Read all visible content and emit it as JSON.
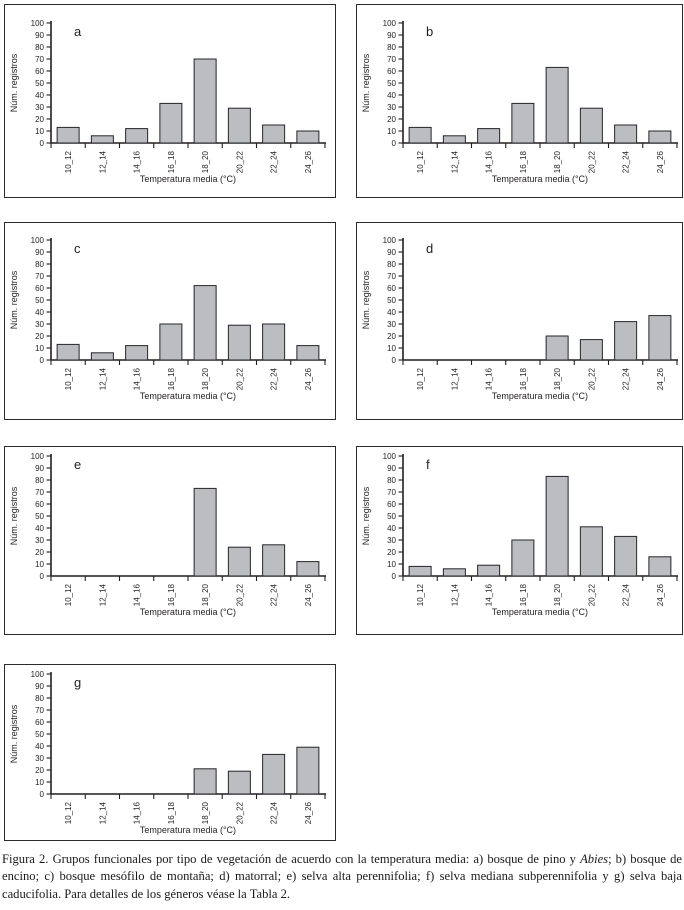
{
  "figure": {
    "caption": {
      "part1": "Figura 2. Grupos funcionales por tipo de vegetación de acuerdo con la temperatura media: a) bosque de pino y ",
      "italic": "Abies",
      "part2": "; b) bosque de encino; c) bosque mesófilo de montaña; d) matorral; e) selva alta perennifolia; f) selva mediana subperennifolia y g) selva baja caducifolia. Para detalles de los géneros véase la Tabla 2."
    },
    "colors": {
      "bar_fill": "#bcbdc1",
      "bar_stroke": "#26262a",
      "axis": "#231f20",
      "panel_border": "#2b2b2b"
    }
  },
  "chart_data": [
    {
      "type": "bar",
      "panel_label": "a",
      "xlabel": "Temperatura media (°C)",
      "ylabel": "Núm. registros",
      "ylim": [
        0,
        100
      ],
      "yticks": [
        0,
        10,
        20,
        30,
        40,
        50,
        60,
        70,
        80,
        90,
        100
      ],
      "categories": [
        "10_12",
        "12_14",
        "14_16",
        "16_18",
        "18_20",
        "20_22",
        "22_24",
        "24_26"
      ],
      "values": [
        13,
        6,
        12,
        33,
        70,
        29,
        15,
        10
      ],
      "grid": false,
      "legend": false
    },
    {
      "type": "bar",
      "panel_label": "b",
      "xlabel": "Temperatura media (°C)",
      "ylabel": "Núm. registros",
      "ylim": [
        0,
        100
      ],
      "yticks": [
        0,
        10,
        20,
        30,
        40,
        50,
        60,
        70,
        80,
        90,
        100
      ],
      "categories": [
        "10_12",
        "12_14",
        "14_16",
        "16_18",
        "18_20",
        "20_22",
        "22_24",
        "24_26"
      ],
      "values": [
        13,
        6,
        12,
        33,
        63,
        29,
        15,
        10
      ],
      "grid": false,
      "legend": false
    },
    {
      "type": "bar",
      "panel_label": "c",
      "xlabel": "Temperatura media (°C)",
      "ylabel": "Núm. registros",
      "ylim": [
        0,
        100
      ],
      "yticks": [
        0,
        10,
        20,
        30,
        40,
        50,
        60,
        70,
        80,
        90,
        100
      ],
      "categories": [
        "10_12",
        "12_14",
        "14_16",
        "16_18",
        "18_20",
        "20_22",
        "22_24",
        "24_26"
      ],
      "values": [
        13,
        6,
        12,
        30,
        62,
        29,
        30,
        12
      ],
      "grid": false,
      "legend": false
    },
    {
      "type": "bar",
      "panel_label": "d",
      "xlabel": "Temperatura media (°C)",
      "ylabel": "Núm. registros",
      "ylim": [
        0,
        100
      ],
      "yticks": [
        0,
        10,
        20,
        30,
        40,
        50,
        60,
        70,
        80,
        90,
        100
      ],
      "categories": [
        "10_12",
        "12_14",
        "14_16",
        "16_18",
        "18_20",
        "20_22",
        "22_24",
        "24_26"
      ],
      "values": [
        0,
        0,
        0,
        0,
        20,
        17,
        32,
        37
      ],
      "grid": false,
      "legend": false
    },
    {
      "type": "bar",
      "panel_label": "e",
      "xlabel": "Temperatura media (°C)",
      "ylabel": "Núm. registros",
      "ylim": [
        0,
        100
      ],
      "yticks": [
        0,
        10,
        20,
        30,
        40,
        50,
        60,
        70,
        80,
        90,
        100
      ],
      "categories": [
        "10_12",
        "12_14",
        "14_16",
        "16_18",
        "18_20",
        "20_22",
        "22_24",
        "24_26"
      ],
      "values": [
        0,
        0,
        0,
        0,
        73,
        24,
        26,
        12
      ],
      "grid": false,
      "legend": false
    },
    {
      "type": "bar",
      "panel_label": "f",
      "xlabel": "Temperatura media (°C)",
      "ylabel": "Núm. registros",
      "ylim": [
        0,
        100
      ],
      "yticks": [
        0,
        10,
        20,
        30,
        40,
        50,
        60,
        70,
        80,
        90,
        100
      ],
      "categories": [
        "10_12",
        "12_14",
        "14_16",
        "16_18",
        "18_20",
        "20_22",
        "22_24",
        "24_26"
      ],
      "values": [
        8,
        6,
        9,
        30,
        83,
        41,
        33,
        16
      ],
      "grid": false,
      "legend": false
    },
    {
      "type": "bar",
      "panel_label": "g",
      "xlabel": "Temperatura media (°C)",
      "ylabel": "Núm. registros",
      "ylim": [
        0,
        100
      ],
      "yticks": [
        0,
        10,
        20,
        30,
        40,
        50,
        60,
        70,
        80,
        90,
        100
      ],
      "categories": [
        "10_12",
        "12_14",
        "14_16",
        "16_18",
        "18_20",
        "20_22",
        "22_24",
        "24_26"
      ],
      "values": [
        0,
        0,
        0,
        0,
        21,
        19,
        33,
        39
      ],
      "grid": false,
      "legend": false
    }
  ]
}
